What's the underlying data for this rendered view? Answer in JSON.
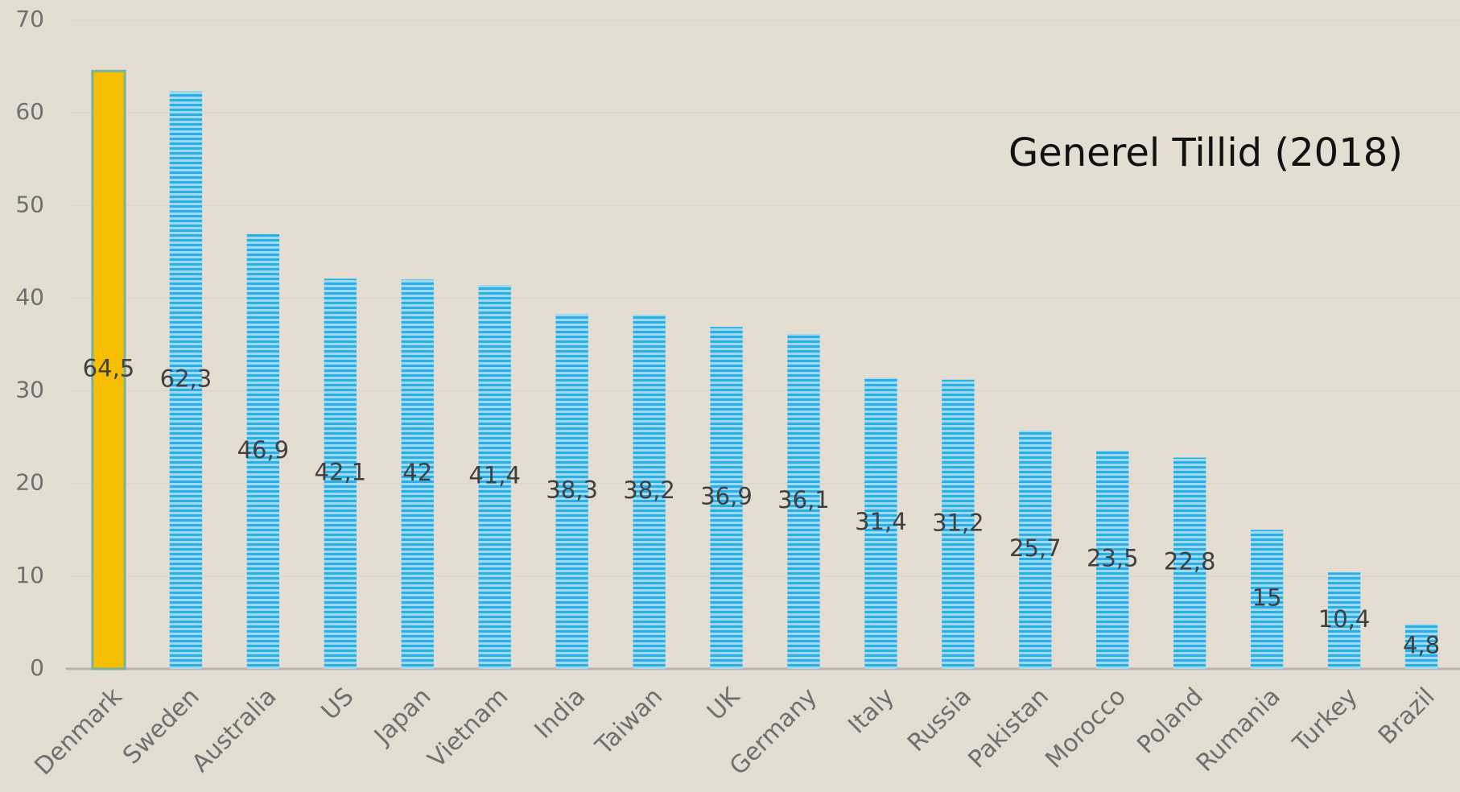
{
  "chart_data": {
    "type": "bar",
    "title": "Generel Tillid (2018)",
    "categories": [
      "Denmark",
      "Sweden",
      "Australia",
      "US",
      "Japan",
      "Vietnam",
      "India",
      "Taiwan",
      "UK",
      "Germany",
      "Italy",
      "Russia",
      "Pakistan",
      "Morocco",
      "Poland",
      "Rumania",
      "Turkey",
      "Brazil"
    ],
    "values": [
      64.5,
      62.3,
      46.9,
      42.1,
      42,
      41.4,
      38.3,
      38.2,
      36.9,
      36.1,
      31.4,
      31.2,
      25.7,
      23.5,
      22.8,
      15,
      10.4,
      4.8
    ],
    "value_labels": [
      "64,5",
      "62,3",
      "46,9",
      "42,1",
      "42",
      "41,4",
      "38,3",
      "38,2",
      "36,9",
      "36,1",
      "31,4",
      "31,2",
      "25,7",
      "23,5",
      "22,8",
      "15",
      "10,4",
      "4,8"
    ],
    "colors": [
      "#f5be00",
      "#2aaee6",
      "#2aaee6",
      "#2aaee6",
      "#2aaee6",
      "#2aaee6",
      "#2aaee6",
      "#2aaee6",
      "#2aaee6",
      "#2aaee6",
      "#2aaee6",
      "#2aaee6",
      "#2aaee6",
      "#2aaee6",
      "#2aaee6",
      "#2aaee6",
      "#2aaee6",
      "#2aaee6"
    ],
    "ylim": [
      0,
      70
    ],
    "yticks": [
      0,
      10,
      20,
      30,
      40,
      50,
      60,
      70
    ],
    "grid": true
  }
}
